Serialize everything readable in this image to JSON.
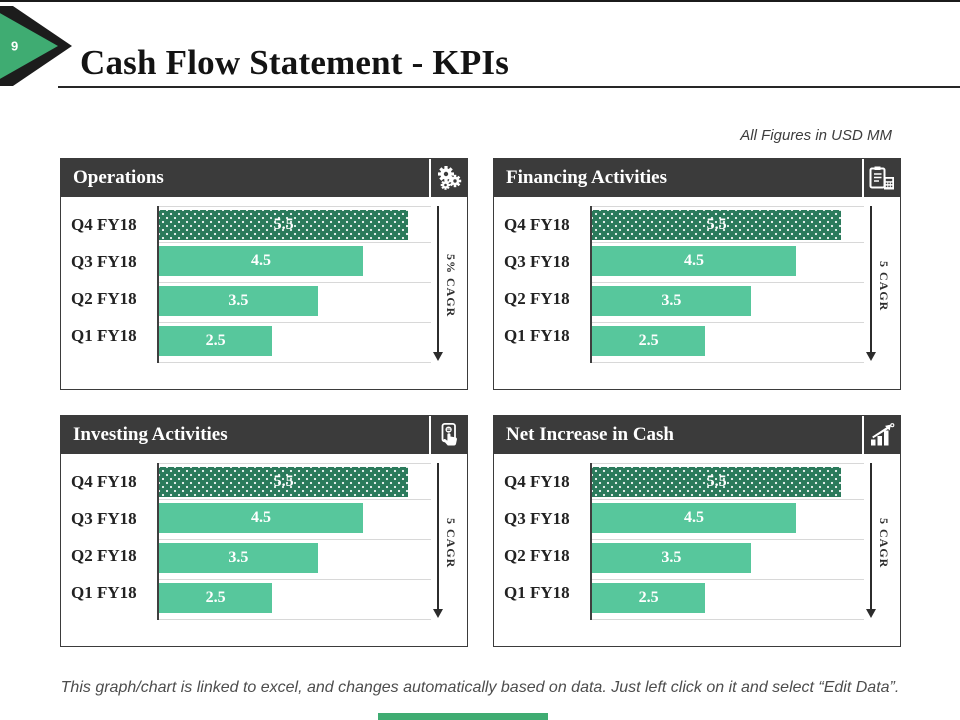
{
  "slide": {
    "number": "9",
    "title": "Cash Flow Statement - KPIs",
    "figures_note": "All Figures in USD MM",
    "footer": "This graph/chart is linked to excel, and changes automatically based on data. Just left click on it and select “Edit Data”."
  },
  "colors": {
    "accent_green": "#3fac72",
    "bar_green": "#57c79c",
    "bar_pattern_green": "#2a7a5b",
    "header_gray": "#3b3b3b",
    "gridline": "#d8d8d8"
  },
  "panels": [
    {
      "title": "Operations",
      "icon": "gears-icon",
      "cagr_label": "5% CAGR"
    },
    {
      "title": "Financing Activities",
      "icon": "clipboard-calculator-icon",
      "cagr_label": "5 CAGR"
    },
    {
      "title": "Investing Activities",
      "icon": "hand-tap-icon",
      "cagr_label": "5 CAGR"
    },
    {
      "title": "Net Increase in Cash",
      "icon": "growth-chart-icon",
      "cagr_label": "5 CAGR"
    }
  ],
  "chart_data": [
    {
      "type": "bar",
      "orientation": "horizontal",
      "title": "Operations",
      "categories": [
        "Q4 FY18",
        "Q3 FY18",
        "Q2 FY18",
        "Q1 FY18"
      ],
      "values": [
        5.5,
        4.5,
        3.5,
        2.5
      ],
      "xlim": [
        0,
        6
      ],
      "grid": true,
      "annotation": "5% CAGR",
      "unit": "USD MM",
      "legend": "none"
    },
    {
      "type": "bar",
      "orientation": "horizontal",
      "title": "Financing Activities",
      "categories": [
        "Q4 FY18",
        "Q3 FY18",
        "Q2 FY18",
        "Q1 FY18"
      ],
      "values": [
        5.5,
        4.5,
        3.5,
        2.5
      ],
      "xlim": [
        0,
        6
      ],
      "grid": true,
      "annotation": "5 CAGR",
      "unit": "USD MM",
      "legend": "none"
    },
    {
      "type": "bar",
      "orientation": "horizontal",
      "title": "Investing Activities",
      "categories": [
        "Q4 FY18",
        "Q3 FY18",
        "Q2 FY18",
        "Q1 FY18"
      ],
      "values": [
        5.5,
        4.5,
        3.5,
        2.5
      ],
      "xlim": [
        0,
        6
      ],
      "grid": true,
      "annotation": "5 CAGR",
      "unit": "USD MM",
      "legend": "none"
    },
    {
      "type": "bar",
      "orientation": "horizontal",
      "title": "Net Increase in Cash",
      "categories": [
        "Q4 FY18",
        "Q3 FY18",
        "Q2 FY18",
        "Q1 FY18"
      ],
      "values": [
        5.5,
        4.5,
        3.5,
        2.5
      ],
      "xlim": [
        0,
        6
      ],
      "grid": true,
      "annotation": "5 CAGR",
      "unit": "USD MM",
      "legend": "none"
    }
  ]
}
